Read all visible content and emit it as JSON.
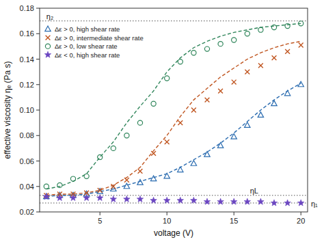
{
  "chart_data": {
    "type": "scatter",
    "x_label": "voltage (V)",
    "y_label": "effective viscosity ηₑ (Pa s)",
    "xlim": [
      0.5,
      20.5
    ],
    "ylim": [
      0.02,
      0.18
    ],
    "xticks": [
      5,
      10,
      15,
      20
    ],
    "yticks": [
      0.02,
      0.04,
      0.06,
      0.08,
      {
        "value": 0.1,
        "label": "0.10"
      },
      0.12,
      0.14,
      0.16,
      0.18
    ],
    "grid": false,
    "legend": "upper left",
    "series": [
      {
        "name": "Δε > 0, high shear rate",
        "marker": "triangle",
        "x": [
          1,
          2,
          3,
          4,
          5,
          6,
          7,
          8,
          9,
          10,
          11,
          12,
          13,
          14,
          15,
          16,
          17,
          18,
          19,
          20
        ],
        "values": [
          0.032,
          0.033,
          0.033,
          0.034,
          0.036,
          0.038,
          0.04,
          0.043,
          0.046,
          0.048,
          0.053,
          0.058,
          0.065,
          0.072,
          0.079,
          0.088,
          0.096,
          0.105,
          0.113,
          0.12
        ],
        "theory": {
          "line_style": "dashed",
          "x": [
            1,
            2,
            3,
            4,
            5,
            6,
            7,
            8,
            9,
            10,
            11,
            12,
            13,
            14,
            15,
            16,
            17,
            18,
            19,
            20
          ],
          "values": [
            0.032,
            0.033,
            0.033,
            0.034,
            0.036,
            0.038,
            0.041,
            0.044,
            0.047,
            0.05,
            0.055,
            0.061,
            0.067,
            0.074,
            0.082,
            0.091,
            0.1,
            0.108,
            0.115,
            0.121
          ]
        }
      },
      {
        "name": "Δε > 0, intermediate shear rate",
        "marker": "x",
        "x": [
          1,
          2,
          3,
          4,
          5,
          6,
          7,
          8,
          9,
          10,
          11,
          12,
          13,
          14,
          15,
          16,
          17,
          18,
          19,
          20
        ],
        "values": [
          0.033,
          0.034,
          0.034,
          0.035,
          0.037,
          0.04,
          0.045,
          0.052,
          0.066,
          0.075,
          0.09,
          0.1,
          0.108,
          0.115,
          0.122,
          0.13,
          0.135,
          0.141,
          0.146,
          0.151
        ],
        "theory": {
          "line_style": "dashed",
          "x": [
            1,
            2,
            3,
            4,
            5,
            6,
            7,
            8,
            9,
            10,
            11,
            12,
            13,
            14,
            15,
            16,
            17,
            18,
            19,
            20
          ],
          "values": [
            0.033,
            0.034,
            0.034,
            0.035,
            0.037,
            0.041,
            0.047,
            0.055,
            0.068,
            0.08,
            0.095,
            0.108,
            0.117,
            0.126,
            0.133,
            0.14,
            0.145,
            0.149,
            0.152,
            0.154
          ]
        }
      },
      {
        "name": "Δε > 0, low shear rate",
        "marker": "circle",
        "x": [
          1,
          2,
          3,
          4,
          5,
          6,
          7,
          8,
          9,
          10,
          11,
          12,
          13,
          14,
          15,
          16,
          17,
          18,
          19,
          20
        ],
        "values": [
          0.04,
          0.041,
          0.046,
          0.048,
          0.063,
          0.07,
          0.08,
          0.09,
          0.105,
          0.125,
          0.138,
          0.145,
          0.148,
          0.152,
          0.155,
          0.16,
          0.163,
          0.165,
          0.166,
          0.168
        ],
        "theory": {
          "line_style": "dashed",
          "x": [
            1,
            2,
            3,
            4,
            5,
            6,
            7,
            8,
            9,
            10,
            11,
            12,
            13,
            14,
            15,
            16,
            17,
            18,
            19,
            20
          ],
          "values": [
            0.038,
            0.04,
            0.044,
            0.05,
            0.063,
            0.075,
            0.09,
            0.103,
            0.115,
            0.13,
            0.141,
            0.149,
            0.154,
            0.158,
            0.161,
            0.163,
            0.165,
            0.166,
            0.167,
            0.168
          ]
        }
      },
      {
        "name": "Δε < 0, high shear rate",
        "marker": "star",
        "x": [
          1,
          2,
          3,
          4,
          5,
          6,
          7,
          8,
          9,
          10,
          11,
          12,
          13,
          14,
          15,
          16,
          17,
          18,
          19,
          20
        ],
        "values": [
          0.032,
          0.031,
          0.031,
          0.031,
          0.031,
          0.03,
          0.03,
          0.03,
          0.029,
          0.029,
          0.029,
          0.029,
          0.028,
          0.028,
          0.028,
          0.028,
          0.028,
          0.027,
          0.027,
          0.027
        ]
      }
    ],
    "reference_lines": [
      {
        "value": 0.17,
        "label": "η₂",
        "line_style": "dotted"
      },
      {
        "value": 0.033,
        "label": "ηL",
        "line_style": "dotted"
      },
      {
        "value": 0.027,
        "label": "η₁",
        "line_style": "dotted"
      }
    ]
  }
}
